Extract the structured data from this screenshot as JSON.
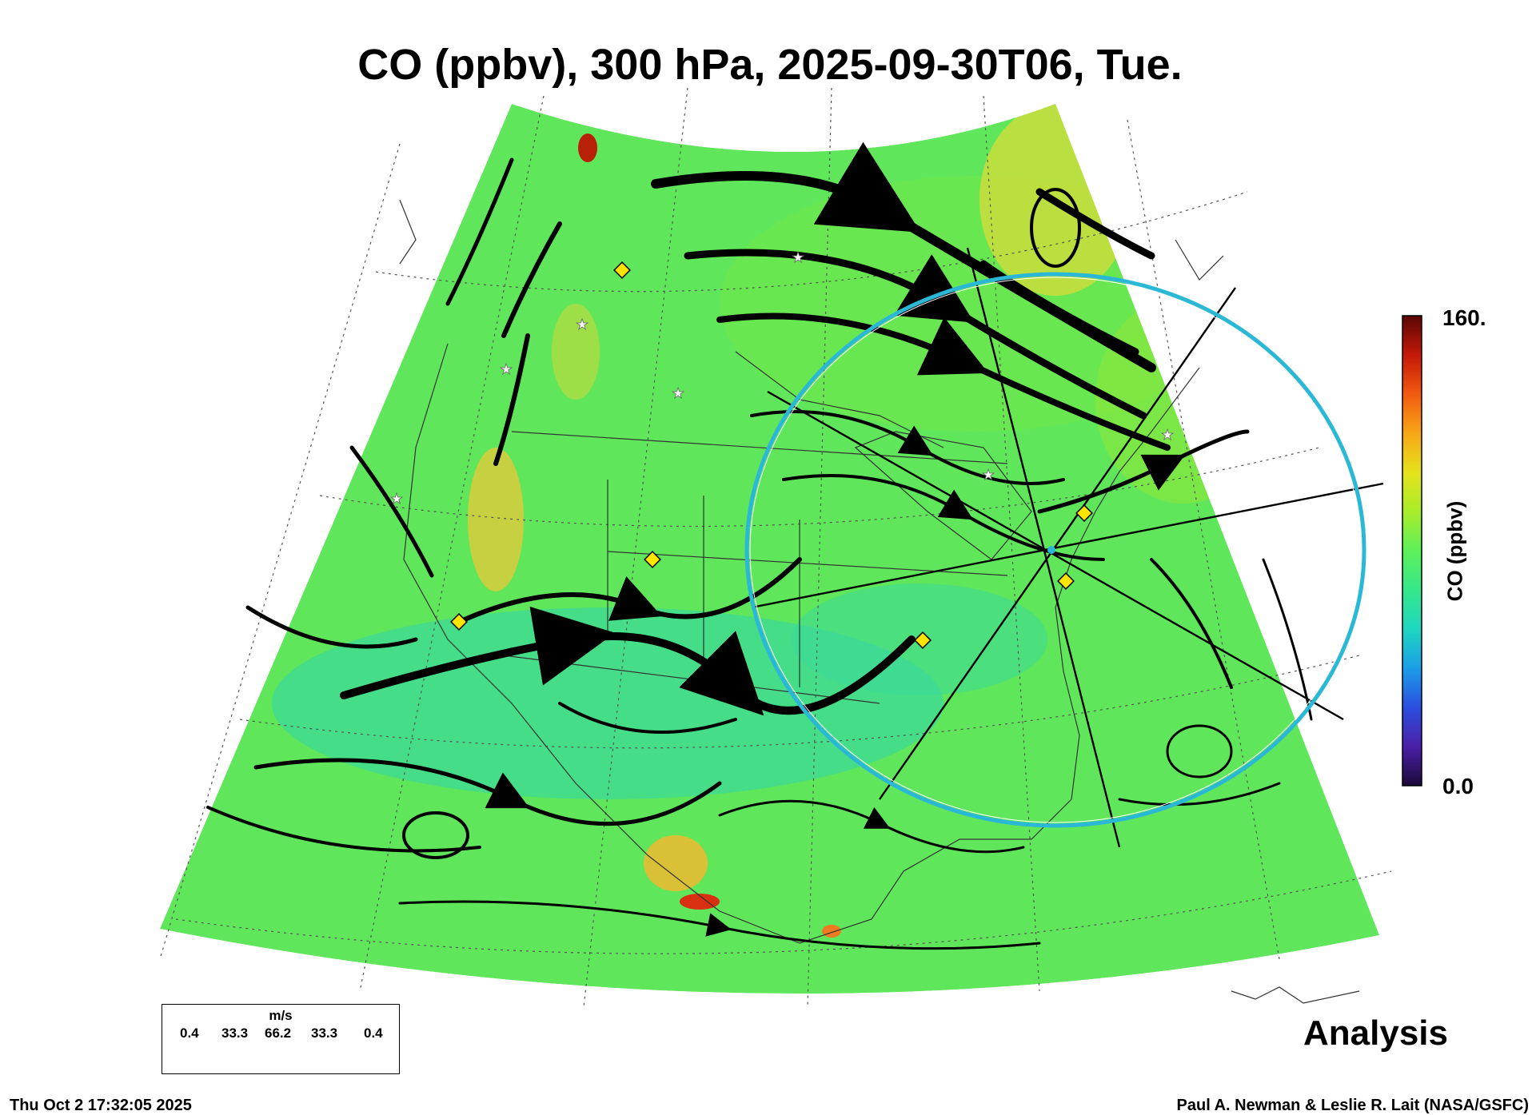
{
  "title": "CO (ppbv), 300 hPa, 2025-09-30T06, Tue.",
  "colorbar": {
    "title": "CO (ppbv)",
    "max_label": "160.",
    "min_label": "0.0",
    "range": [
      0,
      160
    ],
    "colors": [
      "#1a0a3a",
      "#4b1fa8",
      "#2a4fe0",
      "#1b9ee8",
      "#1ed7c0",
      "#35e88a",
      "#5ef05a",
      "#a8ec2a",
      "#e6e21c",
      "#f7a616",
      "#f25a10",
      "#c41808",
      "#5a0606"
    ]
  },
  "wind_legend": {
    "unit": "m/s",
    "values": [
      "0.4",
      "33.3",
      "66.2",
      "33.3",
      "0.4"
    ]
  },
  "analysis_label": "Analysis",
  "timestamp": "Thu Oct  2 17:32:05 2025",
  "credit": "Paul A. Newman & Leslie R. Lait (NASA/GSFC)",
  "field_colors": {
    "background_green": "#5fe65a",
    "cyan_zone": "#3ad89a",
    "high_co": "#e8d83a",
    "ring": "#2ab8d6",
    "marker_diamond": "#ffe400"
  }
}
